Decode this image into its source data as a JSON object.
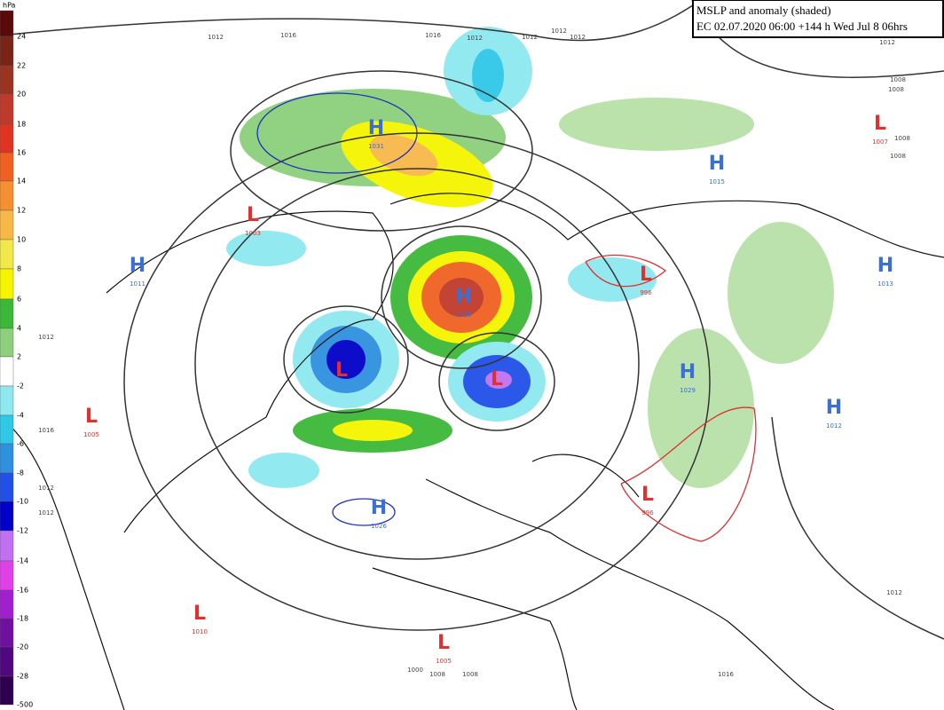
{
  "header": {
    "title": "MSLP and anomaly (shaded)",
    "subtitle": "EC 02.07.2020 06:00 +144 h Wed Jul 8 06hrs"
  },
  "legend": {
    "unit": "hPa",
    "items": [
      {
        "label": "24",
        "color": "#5a0a0a"
      },
      {
        "label": "22",
        "color": "#7a2418"
      },
      {
        "label": "20",
        "color": "#9a3322"
      },
      {
        "label": "18",
        "color": "#c03a2b"
      },
      {
        "label": "16",
        "color": "#e03322"
      },
      {
        "label": "14",
        "color": "#f06020"
      },
      {
        "label": "12",
        "color": "#f59030"
      },
      {
        "label": "10",
        "color": "#f8b848"
      },
      {
        "label": "8",
        "color": "#f2e84a"
      },
      {
        "label": "6",
        "color": "#f5f500"
      },
      {
        "label": "4",
        "color": "#3cb838"
      },
      {
        "label": "2",
        "color": "#8ccf7c"
      },
      {
        "label": "-2",
        "color": "#ffffff"
      },
      {
        "label": "-4",
        "color": "#8ee8f0"
      },
      {
        "label": "-6",
        "color": "#30c8e8"
      },
      {
        "label": "-8",
        "color": "#3090e0"
      },
      {
        "label": "-10",
        "color": "#2050e8"
      },
      {
        "label": "-12",
        "color": "#0000c8"
      },
      {
        "label": "-14",
        "color": "#c070f0"
      },
      {
        "label": "-16",
        "color": "#e040e8"
      },
      {
        "label": "-18",
        "color": "#a020d0"
      },
      {
        "label": "-20",
        "color": "#7010a0"
      },
      {
        "label": "-28",
        "color": "#500880"
      },
      {
        "label": "-500",
        "color": "#300050"
      }
    ]
  },
  "systems": [
    {
      "letter": "H",
      "value": "1031"
    },
    {
      "letter": "L",
      "value": "1003"
    },
    {
      "letter": "H",
      "value": "1011"
    },
    {
      "letter": "H",
      "value": "1030"
    },
    {
      "letter": "L"
    },
    {
      "letter": "L"
    },
    {
      "letter": "H",
      "value": "1029"
    },
    {
      "letter": "L",
      "value": "1005"
    },
    {
      "letter": "H",
      "value": "1026"
    },
    {
      "letter": "L",
      "value": "996"
    },
    {
      "letter": "L",
      "value": "996"
    },
    {
      "letter": "H",
      "value": "1015"
    },
    {
      "letter": "H",
      "value": "1013"
    },
    {
      "letter": "H",
      "value": "1012"
    },
    {
      "letter": "L",
      "value": "1007"
    },
    {
      "letter": "L",
      "value": "1010"
    },
    {
      "letter": "L",
      "value": "1005"
    }
  ],
  "isobar_labels": [
    "1012",
    "1016",
    "1016",
    "1012",
    "1012",
    "1012",
    "1012",
    "1012",
    "1008",
    "1008",
    "1008",
    "1008",
    "1012",
    "1016",
    "1012",
    "1012",
    "1012",
    "1000",
    "1008",
    "1008",
    "1016"
  ]
}
